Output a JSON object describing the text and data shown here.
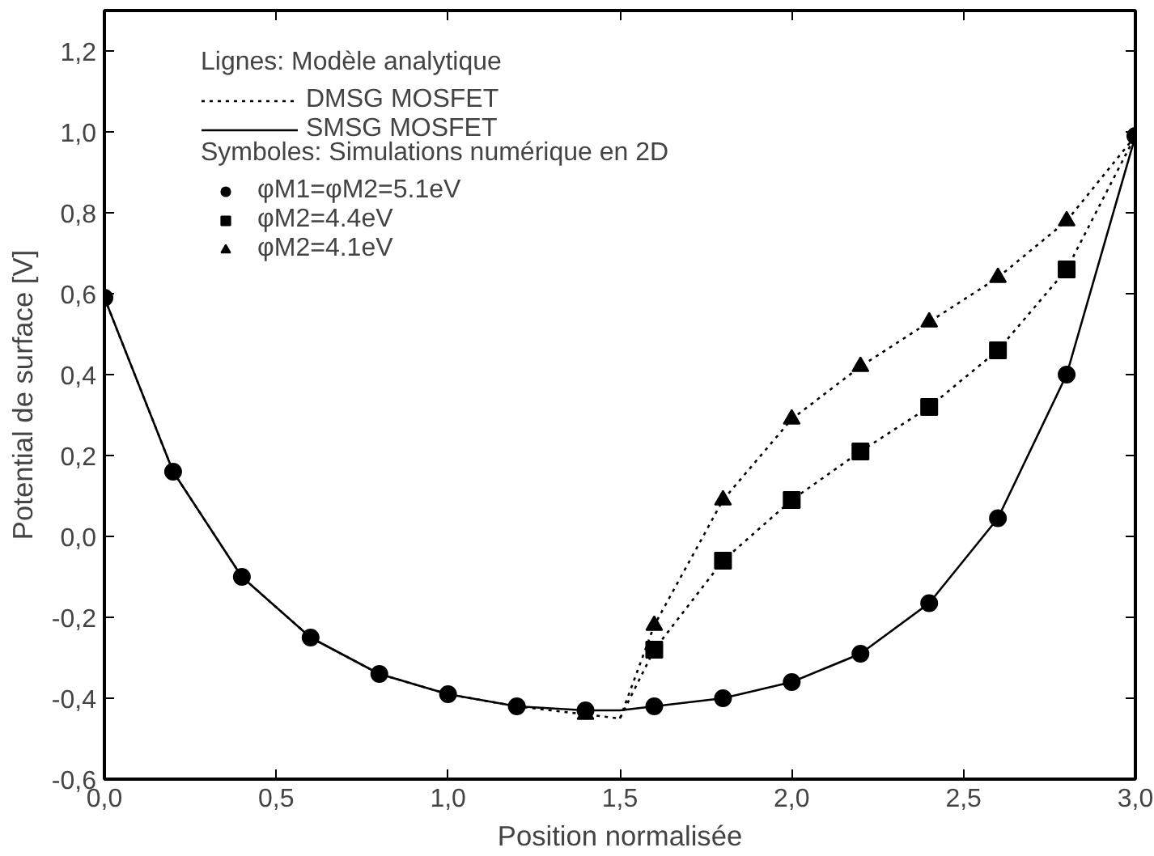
{
  "chart_data": {
    "type": "line",
    "xlabel": "Position normalisée",
    "ylabel": "Potential de surface [V]",
    "xlim": [
      0,
      3
    ],
    "ylim": [
      -0.6,
      1.3
    ],
    "xticks": [
      {
        "value": 0,
        "label": "0,0"
      },
      {
        "value": 0.5,
        "label": "0,5"
      },
      {
        "value": 1,
        "label": "1,0"
      },
      {
        "value": 1.5,
        "label": "1,5"
      },
      {
        "value": 2,
        "label": "2,0"
      },
      {
        "value": 2.5,
        "label": "2,5"
      },
      {
        "value": 3,
        "label": "3,0"
      }
    ],
    "yticks": [
      {
        "value": -0.6,
        "label": "-0,6"
      },
      {
        "value": -0.4,
        "label": "-0,4"
      },
      {
        "value": -0.2,
        "label": "-0,2"
      },
      {
        "value": 0,
        "label": "0,0"
      },
      {
        "value": 0.2,
        "label": "0,2"
      },
      {
        "value": 0.4,
        "label": "0,4"
      },
      {
        "value": 0.6,
        "label": "0,6"
      },
      {
        "value": 0.8,
        "label": "0,8"
      },
      {
        "value": 1.0,
        "label": "1,0"
      },
      {
        "value": 1.2,
        "label": "1,2"
      }
    ],
    "grid": false,
    "legend": "top left",
    "annotations": [
      "Lignes: Modèle analytique",
      "Symboles: Simulations numérique en 2D"
    ],
    "series": [
      {
        "name": "DMSG MOSFET",
        "line_style": "dotted",
        "marker": "none",
        "color": "#000000",
        "x": [
          0,
          0.2,
          0.4,
          0.6,
          0.8,
          1.0,
          1.2,
          1.4,
          1.5,
          1.6,
          1.8,
          2.0,
          2.2,
          2.4,
          2.6,
          2.8,
          3.0
        ],
        "values": [
          0.59,
          0.16,
          -0.1,
          -0.25,
          -0.34,
          -0.39,
          -0.42,
          -0.44,
          -0.45,
          -0.28,
          -0.06,
          0.09,
          0.21,
          0.32,
          0.46,
          0.66,
          0.99
        ]
      },
      {
        "line_style": "dotted",
        "marker": "none",
        "color": "#000000",
        "x": [
          1.5,
          1.6,
          1.8,
          2.0,
          2.2,
          2.4,
          2.6,
          2.8,
          3.0
        ],
        "values": [
          -0.45,
          -0.22,
          0.09,
          0.29,
          0.42,
          0.53,
          0.64,
          0.78,
          0.99
        ]
      },
      {
        "name": "SMSG MOSFET",
        "line_style": "solid",
        "marker": "none",
        "color": "#000000",
        "x": [
          0,
          0.2,
          0.4,
          0.6,
          0.8,
          1.0,
          1.2,
          1.4,
          1.5,
          1.6,
          1.8,
          2.0,
          2.2,
          2.4,
          2.6,
          2.8,
          3.0
        ],
        "values": [
          0.59,
          0.16,
          -0.1,
          -0.25,
          -0.34,
          -0.39,
          -0.42,
          -0.43,
          -0.43,
          -0.42,
          -0.4,
          -0.36,
          -0.29,
          -0.165,
          0.045,
          0.4,
          0.99
        ]
      },
      {
        "name": "φM1=φM2=5.1eV",
        "type": "scatter",
        "marker": "circle",
        "color": "#000000",
        "x": [
          0,
          0.2,
          0.4,
          0.6,
          0.8,
          1.0,
          1.2,
          1.4,
          1.6,
          1.8,
          2.0,
          2.2,
          2.4,
          2.6,
          2.8,
          3.0
        ],
        "values": [
          0.59,
          0.16,
          -0.1,
          -0.25,
          -0.34,
          -0.39,
          -0.42,
          -0.43,
          -0.42,
          -0.4,
          -0.36,
          -0.29,
          -0.165,
          0.045,
          0.4,
          0.99
        ]
      },
      {
        "name": "φM2=4.4eV",
        "type": "scatter",
        "marker": "square",
        "color": "#000000",
        "x": [
          1.6,
          1.8,
          2.0,
          2.2,
          2.4,
          2.6,
          2.8
        ],
        "values": [
          -0.28,
          -0.06,
          0.09,
          0.21,
          0.32,
          0.46,
          0.66
        ]
      },
      {
        "name": "φM2=4.1eV",
        "type": "scatter",
        "marker": "triangle",
        "color": "#000000",
        "x": [
          1.4,
          1.6,
          1.8,
          2.0,
          2.2,
          2.4,
          2.6,
          2.8
        ],
        "values": [
          -0.44,
          -0.22,
          0.09,
          0.29,
          0.42,
          0.53,
          0.64,
          0.78
        ]
      }
    ]
  }
}
